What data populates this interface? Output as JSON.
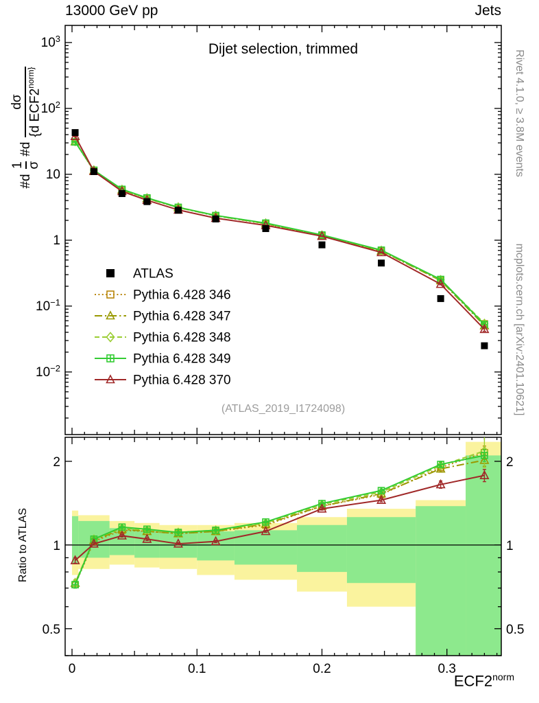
{
  "header": {
    "left": "13000 GeV pp",
    "right": "Jets"
  },
  "main_title": "Dijet selection, trimmed",
  "watermark": "(ATLAS_2019_I1724098)",
  "ratio_ylabel": "Ratio to ATLAS",
  "side_labels": {
    "rivet": "Rivet 4.1.0, ≥ 3.8M events",
    "mcplots": "mcplots.cern.ch [arXiv:2401.10621]"
  },
  "ylabel": {
    "p1": "#d",
    "f1_num": "1",
    "f1_den": "σ",
    "p2": "#d",
    "f2_num": "dσ",
    "f2_den": "{d ECF2",
    "f2_sup": "norm}"
  },
  "xlabel": {
    "base": "ECF2",
    "sup": "norm"
  },
  "chart_data": {
    "type": "line",
    "title": "Dijet selection, trimmed",
    "x_label": "ECF2^norm",
    "y_label": "1/σ dσ/d ECF2^norm",
    "ratio_label": "Ratio to ATLAS",
    "x_axis": {
      "min": -0.0055,
      "max": 0.3435,
      "major_ticks": [
        0,
        0.1,
        0.2,
        0.3
      ],
      "medium_step": 0.05,
      "minor_step": 0.01
    },
    "y_main_axis": {
      "scale": "log",
      "log_min": -2.95,
      "log_max": 3.26,
      "decade_labels": [
        3,
        2,
        1,
        0,
        -1,
        -2
      ]
    },
    "y_ratio_axis": {
      "scale": "log",
      "min": 0.4,
      "max": 2.44,
      "labeled_ticks": [
        0.5,
        1,
        2
      ],
      "minor_ticks": [
        0.4,
        0.6,
        0.7,
        0.8,
        0.9
      ]
    },
    "x": [
      0.0025,
      0.0175,
      0.04,
      0.06,
      0.085,
      0.115,
      0.155,
      0.2,
      0.2475,
      0.295,
      0.33
    ],
    "bin_edges": [
      0,
      0.005,
      0.03,
      0.05,
      0.07,
      0.1,
      0.13,
      0.18,
      0.22,
      0.275,
      0.315,
      0.345
    ],
    "ratio_reference": 1,
    "series": [
      {
        "name": "ATLAS",
        "color": "#000000",
        "marker": "square-filled",
        "line_style": "none",
        "values": [
          43,
          11,
          5.1,
          3.85,
          2.85,
          2.1,
          1.5,
          0.85,
          0.45,
          0.13,
          0.025
        ],
        "errors": [
          2.5,
          0.4,
          0.18,
          0.13,
          0.1,
          0.07,
          0.05,
          0.03,
          0.018,
          0.007,
          0.002
        ]
      },
      {
        "name": "Pythia 6.428 346",
        "color": "#b8860b",
        "marker": "square-open",
        "line_style": "dotted",
        "values": [
          31,
          11.3,
          5.76,
          4.31,
          3.13,
          2.35,
          1.77,
          1.17,
          0.684,
          0.247,
          0.0538
        ],
        "errors": [
          0.5,
          0.12,
          0.05,
          0.04,
          0.03,
          0.02,
          0.015,
          0.012,
          0.01,
          0.005,
          0.003
        ],
        "ratio": [
          0.72,
          1.03,
          1.13,
          1.12,
          1.1,
          1.12,
          1.18,
          1.38,
          1.52,
          1.9,
          2.15
        ],
        "ratio_errors": [
          0.02,
          0.012,
          0.012,
          0.012,
          0.01,
          0.01,
          0.01,
          0.015,
          0.02,
          0.05,
          0.12
        ]
      },
      {
        "name": "Pythia 6.428 347",
        "color": "#999900",
        "marker": "triangle-open",
        "line_style": "dashdot",
        "values": [
          31.4,
          11.4,
          5.81,
          4.31,
          3.14,
          2.35,
          1.79,
          1.17,
          0.689,
          0.244,
          0.0505
        ],
        "errors": [
          0.5,
          0.12,
          0.05,
          0.04,
          0.03,
          0.02,
          0.015,
          0.012,
          0.01,
          0.005,
          0.003
        ],
        "ratio": [
          0.73,
          1.04,
          1.14,
          1.12,
          1.1,
          1.12,
          1.19,
          1.38,
          1.53,
          1.88,
          2.02
        ],
        "ratio_errors": [
          0.02,
          0.012,
          0.012,
          0.012,
          0.01,
          0.01,
          0.01,
          0.015,
          0.02,
          0.05,
          0.1
        ]
      },
      {
        "name": "Pythia 6.428 348",
        "color": "#9acd32",
        "marker": "diamond-open",
        "line_style": "dashed",
        "values": [
          31.4,
          11.55,
          5.87,
          4.35,
          3.16,
          2.37,
          1.8,
          1.19,
          0.698,
          0.251,
          0.0545
        ],
        "errors": [
          0.5,
          0.12,
          0.05,
          0.04,
          0.03,
          0.02,
          0.015,
          0.012,
          0.01,
          0.005,
          0.004
        ],
        "ratio": [
          0.73,
          1.05,
          1.15,
          1.13,
          1.11,
          1.13,
          1.2,
          1.4,
          1.55,
          1.93,
          2.18
        ],
        "ratio_errors": [
          0.02,
          0.012,
          0.012,
          0.012,
          0.01,
          0.01,
          0.01,
          0.015,
          0.02,
          0.05,
          0.28
        ]
      },
      {
        "name": "Pythia 6.428 349",
        "color": "#33cc33",
        "marker": "square-cross",
        "line_style": "solid",
        "values": [
          31,
          11.55,
          5.92,
          4.39,
          3.16,
          2.37,
          1.82,
          1.2,
          0.707,
          0.254,
          0.0525
        ],
        "errors": [
          0.5,
          0.12,
          0.05,
          0.04,
          0.03,
          0.02,
          0.015,
          0.012,
          0.01,
          0.005,
          0.003
        ],
        "ratio": [
          0.72,
          1.05,
          1.16,
          1.14,
          1.11,
          1.13,
          1.21,
          1.41,
          1.57,
          1.95,
          2.1
        ],
        "ratio_errors": [
          0.02,
          0.012,
          0.012,
          0.012,
          0.01,
          0.01,
          0.01,
          0.015,
          0.02,
          0.04,
          0.1
        ]
      },
      {
        "name": "Pythia 6.428 370",
        "color": "#a02828",
        "marker": "triangle-open",
        "line_style": "solid",
        "values": [
          37.8,
          11.1,
          5.51,
          4.04,
          2.88,
          2.16,
          1.68,
          1.15,
          0.653,
          0.215,
          0.0445
        ],
        "errors": [
          0.6,
          0.12,
          0.05,
          0.04,
          0.03,
          0.02,
          0.015,
          0.012,
          0.01,
          0.005,
          0.003
        ],
        "ratio": [
          0.88,
          1.01,
          1.08,
          1.05,
          1.01,
          1.03,
          1.12,
          1.35,
          1.45,
          1.65,
          1.78
        ],
        "ratio_errors": [
          0.02,
          0.012,
          0.012,
          0.012,
          0.01,
          0.01,
          0.01,
          0.015,
          0.02,
          0.05,
          0.09
        ]
      }
    ],
    "bands": {
      "yellow_color": "#faf39e",
      "green_color": "#8de98d",
      "yellow": [
        [
          0.78,
          1.33
        ],
        [
          0.82,
          1.28
        ],
        [
          0.85,
          1.22
        ],
        [
          0.83,
          1.2
        ],
        [
          0.82,
          1.18
        ],
        [
          0.78,
          1.18
        ],
        [
          0.75,
          1.2
        ],
        [
          0.68,
          1.26
        ],
        [
          0.6,
          1.35
        ],
        [
          0.3,
          1.45
        ],
        [
          0.3,
          2.35
        ]
      ],
      "green": [
        [
          0.86,
          1.27
        ],
        [
          0.9,
          1.22
        ],
        [
          0.92,
          1.15
        ],
        [
          0.9,
          1.13
        ],
        [
          0.9,
          1.12
        ],
        [
          0.88,
          1.12
        ],
        [
          0.85,
          1.13
        ],
        [
          0.8,
          1.18
        ],
        [
          0.73,
          1.26
        ],
        [
          0.3,
          1.38
        ],
        [
          0.3,
          2.1
        ]
      ]
    },
    "legend_position": "middle-left"
  }
}
